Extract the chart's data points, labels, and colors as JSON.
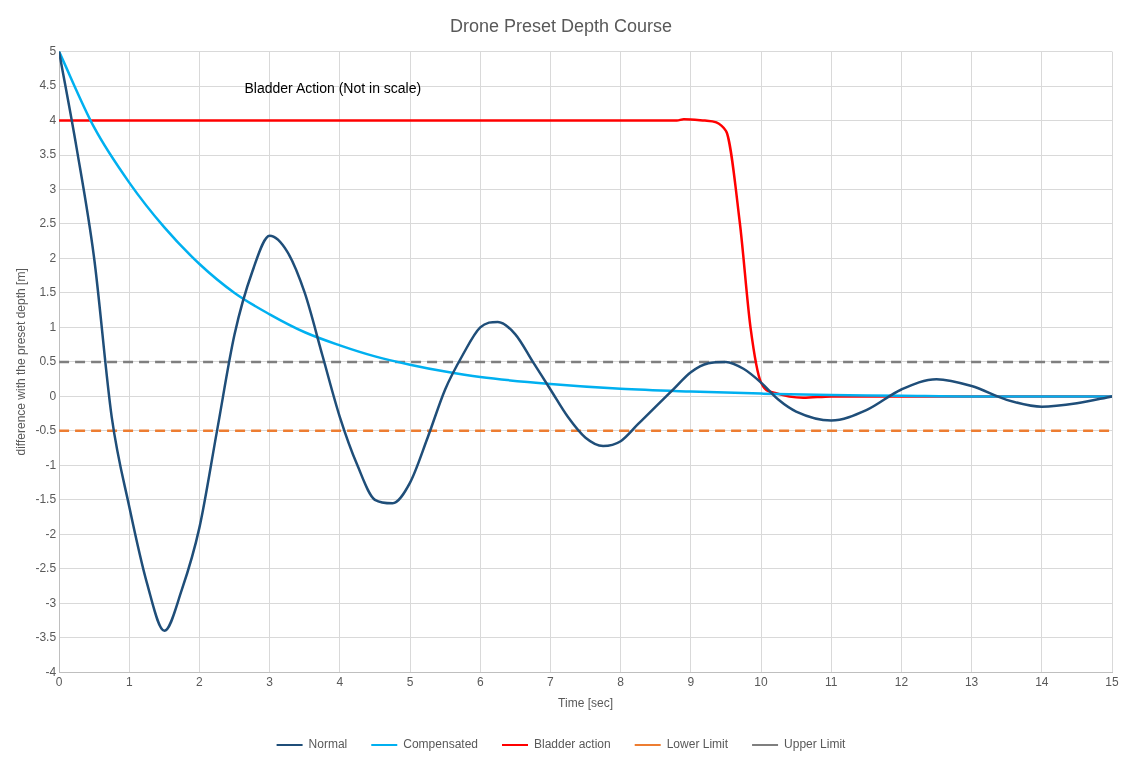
{
  "chart_data": {
    "type": "line",
    "title": "Drone Preset Depth Course",
    "xlabel": "Time [sec]",
    "ylabel": "difference with the preset depth [m]",
    "xlim": [
      0,
      15
    ],
    "xticks": [
      0,
      1,
      2,
      3,
      4,
      5,
      6,
      7,
      8,
      9,
      10,
      11,
      12,
      13,
      14,
      15
    ],
    "ylim": [
      -4,
      5
    ],
    "yticks": [
      -4,
      -3.5,
      -3,
      -2.5,
      -2,
      -1.5,
      -1,
      -0.5,
      0,
      0.5,
      1,
      1.5,
      2,
      2.5,
      3,
      3.5,
      4,
      4.5,
      5
    ],
    "grid": true,
    "legend": "bottom",
    "marker": "none",
    "series": [
      {
        "name": "Normal",
        "color": "#1f4e79",
        "x": [
          0,
          0.25,
          0.5,
          0.75,
          1,
          1.25,
          1.5,
          1.75,
          2,
          2.25,
          2.5,
          2.75,
          3,
          3.25,
          3.5,
          3.75,
          4,
          4.25,
          4.5,
          4.75,
          5,
          5.25,
          5.5,
          5.75,
          6,
          6.25,
          6.5,
          6.75,
          7,
          7.25,
          7.5,
          7.75,
          8,
          8.25,
          8.5,
          8.75,
          9,
          9.25,
          9.5,
          9.75,
          10,
          10.25,
          10.5,
          11,
          11.5,
          12,
          12.5,
          13,
          13.5,
          14,
          14.5,
          15
        ],
        "values": [
          5,
          3.6,
          2.0,
          -0.3,
          -1.6,
          -2.7,
          -3.4,
          -2.8,
          -1.9,
          -0.5,
          0.9,
          1.8,
          2.33,
          2.1,
          1.5,
          0.6,
          -0.3,
          -1.0,
          -1.5,
          -1.55,
          -1.25,
          -0.6,
          0.1,
          0.6,
          1.0,
          1.08,
          0.9,
          0.5,
          0.1,
          -0.3,
          -0.6,
          -0.72,
          -0.65,
          -0.4,
          -0.15,
          0.1,
          0.35,
          0.48,
          0.5,
          0.4,
          0.2,
          -0.05,
          -0.22,
          -0.35,
          -0.2,
          0.1,
          0.25,
          0.15,
          -0.05,
          -0.15,
          -0.1,
          0
        ]
      },
      {
        "name": "Compensated",
        "color": "#00b0f0",
        "x": [
          0,
          0.5,
          1,
          1.5,
          2,
          2.5,
          3,
          3.5,
          4,
          4.5,
          5,
          5.5,
          6,
          7,
          8,
          9,
          10,
          11,
          12,
          13,
          15
        ],
        "values": [
          5,
          3.9,
          3.1,
          2.45,
          1.92,
          1.5,
          1.19,
          0.93,
          0.74,
          0.58,
          0.46,
          0.36,
          0.28,
          0.18,
          0.11,
          0.07,
          0.04,
          0.02,
          0.01,
          0,
          0
        ]
      },
      {
        "name": "Bladder action",
        "color": "#ff0000",
        "x": [
          0,
          8.8,
          8.9,
          9.2,
          9.5,
          9.7,
          9.85,
          10,
          10.2,
          10.6,
          11,
          15
        ],
        "values": [
          4,
          4,
          4.02,
          4,
          3.85,
          2.5,
          1,
          0.2,
          0.05,
          -0.02,
          0,
          0
        ]
      }
    ],
    "ref_lines": [
      {
        "axis": "y",
        "value": -0.5,
        "label": "Lower Limit",
        "color": "#ed7d31",
        "line_style": "dashed"
      },
      {
        "axis": "y",
        "value": 0.5,
        "label": "Upper Limit",
        "color": "#7f7f7f",
        "line_style": "dashed"
      }
    ],
    "annotations": [
      "Bladder Action (Not in scale)"
    ]
  }
}
